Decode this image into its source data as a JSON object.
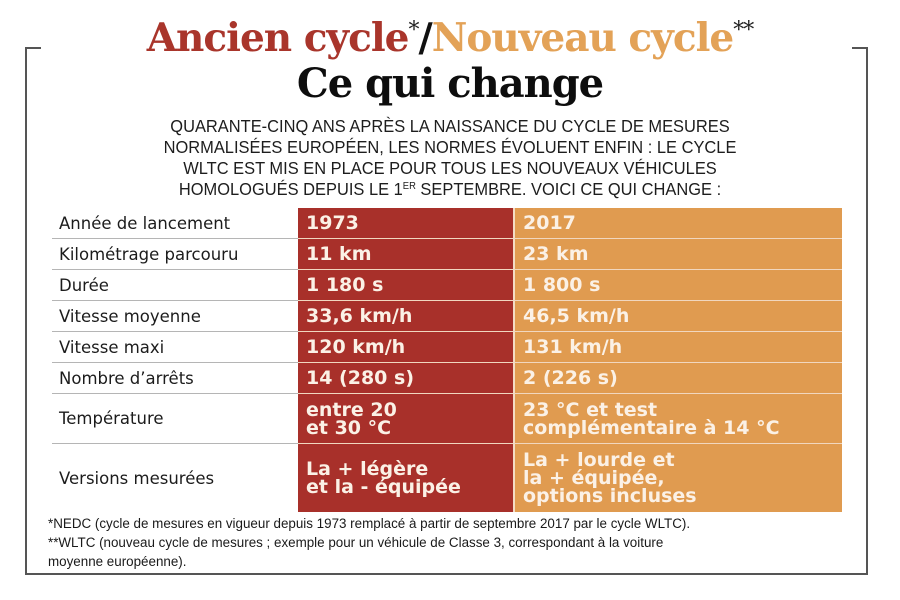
{
  "header": {
    "title_old": "Ancien cycle",
    "title_old_mark": "*",
    "title_sep": "/",
    "title_new": "Nouveau cycle",
    "title_new_mark": "**",
    "subtitle": "Ce qui change"
  },
  "colors": {
    "old_cycle": "#a8302a",
    "new_cycle": "#e09b50",
    "text": "#1a1a1a"
  },
  "intro": {
    "lines": [
      "QUARANTE-CINQ ANS APRÈS LA NAISSANCE DU CYCLE DE MESURES",
      "NORMALISÉES EUROPÉEN, LES NORMES ÉVOLUENT ENFIN : LE CYCLE",
      "WLTC EST MIS EN PLACE POUR TOUS LES NOUVEAUX VÉHICULES"
    ],
    "last_line_before": "HOMOLOGUÉS DEPUIS LE 1",
    "last_line_sup": "ER",
    "last_line_after": " SEPTEMBRE. VOICI CE QUI CHANGE :"
  },
  "table": {
    "rows": [
      {
        "label": "Année de lancement",
        "old": [
          "1973"
        ],
        "new": [
          "2017"
        ]
      },
      {
        "label": "Kilométrage parcouru",
        "old": [
          "11 km"
        ],
        "new": [
          "23 km"
        ]
      },
      {
        "label": "Durée",
        "old": [
          "1 180 s"
        ],
        "new": [
          "1 800 s"
        ]
      },
      {
        "label": "Vitesse moyenne",
        "old": [
          "33,6 km/h"
        ],
        "new": [
          "46,5 km/h"
        ]
      },
      {
        "label": "Vitesse maxi",
        "old": [
          "120 km/h"
        ],
        "new": [
          "131 km/h"
        ]
      },
      {
        "label": "Nombre d’arrêts",
        "old": [
          "14 (280 s)"
        ],
        "new": [
          "2 (226 s)"
        ]
      },
      {
        "label": "Température",
        "old": [
          "entre 20",
          "et 30 °C"
        ],
        "new": [
          "23 °C et test",
          "complémentaire à 14 °C"
        ]
      },
      {
        "label": "Versions mesurées",
        "old": [
          "La + légère",
          "et la - équipée"
        ],
        "new": [
          "La + lourde et",
          "la + équipée,",
          "options incluses"
        ]
      }
    ]
  },
  "footnotes": [
    "*NEDC (cycle de mesures en vigueur depuis 1973 remplacé à partir de septembre 2017 par le cycle WLTC).",
    "**WLTC (nouveau cycle de mesures ; exemple pour un véhicule de Classe 3, correspondant à la voiture",
    "moyenne européenne)."
  ]
}
